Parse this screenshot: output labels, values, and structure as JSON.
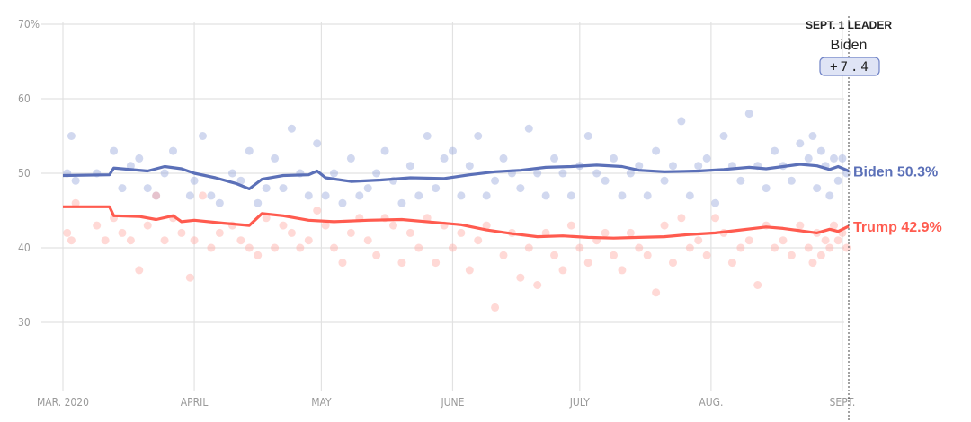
{
  "chart_data": {
    "type": "line",
    "title": "",
    "xlabel": "",
    "ylabel": "",
    "ylim": [
      20,
      70
    ],
    "x_unit": "days since Mar. 1, 2020",
    "xlim": [
      0,
      185
    ],
    "y_ticks": [
      {
        "value": 70,
        "label": "70%"
      },
      {
        "value": 60,
        "label": "60"
      },
      {
        "value": 50,
        "label": "50"
      },
      {
        "value": 40,
        "label": "40"
      },
      {
        "value": 30,
        "label": "30"
      }
    ],
    "x_ticks": [
      {
        "day": 0,
        "label": "MAR. 2020"
      },
      {
        "day": 31,
        "label": "APRIL"
      },
      {
        "day": 61,
        "label": "MAY"
      },
      {
        "day": 92,
        "label": "JUNE"
      },
      {
        "day": 122,
        "label": "JULY"
      },
      {
        "day": 153,
        "label": "AUG."
      },
      {
        "day": 184,
        "label": "SEPT."
      }
    ],
    "grid": true,
    "leader": {
      "heading": "SEPT. 1 LEADER",
      "name": "Biden",
      "margin": "+7.4",
      "day": 185.5
    },
    "series": [
      {
        "name": "Biden",
        "label": "Biden 50.3%",
        "color": "#5b70b8",
        "dot_color": "#9aa8dc",
        "trend": [
          [
            0,
            49.7
          ],
          [
            11,
            49.8
          ],
          [
            12,
            50.7
          ],
          [
            20,
            50.3
          ],
          [
            24,
            50.9
          ],
          [
            28,
            50.6
          ],
          [
            31,
            50.0
          ],
          [
            36,
            49.4
          ],
          [
            41,
            48.6
          ],
          [
            44,
            47.9
          ],
          [
            47,
            49.2
          ],
          [
            52,
            49.7
          ],
          [
            58,
            49.8
          ],
          [
            60,
            50.3
          ],
          [
            62,
            49.4
          ],
          [
            68,
            48.9
          ],
          [
            75,
            49.1
          ],
          [
            82,
            49.4
          ],
          [
            90,
            49.3
          ],
          [
            96,
            49.8
          ],
          [
            102,
            50.2
          ],
          [
            108,
            50.4
          ],
          [
            114,
            50.8
          ],
          [
            120,
            50.9
          ],
          [
            126,
            51.1
          ],
          [
            132,
            50.9
          ],
          [
            136,
            50.4
          ],
          [
            142,
            50.2
          ],
          [
            150,
            50.3
          ],
          [
            156,
            50.5
          ],
          [
            162,
            50.8
          ],
          [
            166,
            50.6
          ],
          [
            170,
            50.9
          ],
          [
            174,
            51.2
          ],
          [
            178,
            51.0
          ],
          [
            181,
            50.5
          ],
          [
            183,
            50.9
          ],
          [
            185.5,
            50.3
          ]
        ],
        "polls": [
          [
            1,
            50
          ],
          [
            2,
            55
          ],
          [
            3,
            49
          ],
          [
            8,
            50
          ],
          [
            12,
            53
          ],
          [
            14,
            48
          ],
          [
            16,
            51
          ],
          [
            18,
            52
          ],
          [
            20,
            48
          ],
          [
            22,
            47
          ],
          [
            24,
            50
          ],
          [
            26,
            53
          ],
          [
            30,
            47
          ],
          [
            31,
            49
          ],
          [
            33,
            55
          ],
          [
            35,
            47
          ],
          [
            37,
            46
          ],
          [
            40,
            50
          ],
          [
            42,
            49
          ],
          [
            44,
            53
          ],
          [
            46,
            46
          ],
          [
            48,
            48
          ],
          [
            50,
            52
          ],
          [
            52,
            48
          ],
          [
            54,
            56
          ],
          [
            56,
            50
          ],
          [
            58,
            47
          ],
          [
            60,
            54
          ],
          [
            62,
            47
          ],
          [
            64,
            50
          ],
          [
            66,
            46
          ],
          [
            68,
            52
          ],
          [
            70,
            47
          ],
          [
            72,
            48
          ],
          [
            74,
            50
          ],
          [
            76,
            53
          ],
          [
            78,
            49
          ],
          [
            80,
            46
          ],
          [
            82,
            51
          ],
          [
            84,
            47
          ],
          [
            86,
            55
          ],
          [
            88,
            48
          ],
          [
            90,
            52
          ],
          [
            92,
            53
          ],
          [
            94,
            47
          ],
          [
            96,
            51
          ],
          [
            98,
            55
          ],
          [
            100,
            47
          ],
          [
            102,
            49
          ],
          [
            104,
            52
          ],
          [
            106,
            50
          ],
          [
            108,
            48
          ],
          [
            110,
            56
          ],
          [
            112,
            50
          ],
          [
            114,
            47
          ],
          [
            116,
            52
          ],
          [
            118,
            50
          ],
          [
            120,
            47
          ],
          [
            122,
            51
          ],
          [
            124,
            55
          ],
          [
            126,
            50
          ],
          [
            128,
            49
          ],
          [
            130,
            52
          ],
          [
            132,
            47
          ],
          [
            134,
            50
          ],
          [
            136,
            51
          ],
          [
            138,
            47
          ],
          [
            140,
            53
          ],
          [
            142,
            49
          ],
          [
            144,
            51
          ],
          [
            146,
            57
          ],
          [
            148,
            47
          ],
          [
            150,
            51
          ],
          [
            152,
            52
          ],
          [
            154,
            46
          ],
          [
            156,
            55
          ],
          [
            158,
            51
          ],
          [
            160,
            49
          ],
          [
            162,
            58
          ],
          [
            164,
            51
          ],
          [
            166,
            48
          ],
          [
            168,
            53
          ],
          [
            170,
            51
          ],
          [
            172,
            49
          ],
          [
            174,
            54
          ],
          [
            176,
            52
          ],
          [
            177,
            55
          ],
          [
            178,
            48
          ],
          [
            179,
            53
          ],
          [
            180,
            51
          ],
          [
            181,
            47
          ],
          [
            182,
            52
          ],
          [
            183,
            49
          ],
          [
            184,
            52
          ],
          [
            185,
            50
          ]
        ]
      },
      {
        "name": "Trump",
        "label": "Trump 42.9%",
        "color": "#ff5b4f",
        "dot_color": "#ffaaa3",
        "trend": [
          [
            0,
            45.5
          ],
          [
            11,
            45.5
          ],
          [
            12,
            44.3
          ],
          [
            18,
            44.2
          ],
          [
            22,
            43.8
          ],
          [
            26,
            44.3
          ],
          [
            28,
            43.5
          ],
          [
            31,
            43.7
          ],
          [
            38,
            43.3
          ],
          [
            44,
            43.0
          ],
          [
            47,
            44.6
          ],
          [
            52,
            44.3
          ],
          [
            58,
            43.7
          ],
          [
            64,
            43.5
          ],
          [
            72,
            43.7
          ],
          [
            80,
            43.8
          ],
          [
            88,
            43.4
          ],
          [
            94,
            43.1
          ],
          [
            100,
            42.4
          ],
          [
            106,
            41.9
          ],
          [
            112,
            41.5
          ],
          [
            118,
            41.6
          ],
          [
            124,
            41.4
          ],
          [
            130,
            41.3
          ],
          [
            136,
            41.4
          ],
          [
            142,
            41.5
          ],
          [
            148,
            41.8
          ],
          [
            154,
            42.0
          ],
          [
            160,
            42.4
          ],
          [
            166,
            42.8
          ],
          [
            170,
            42.6
          ],
          [
            174,
            42.3
          ],
          [
            178,
            42.0
          ],
          [
            181,
            42.5
          ],
          [
            183,
            42.2
          ],
          [
            185.5,
            42.9
          ]
        ],
        "polls": [
          [
            1,
            42
          ],
          [
            2,
            41
          ],
          [
            3,
            46
          ],
          [
            8,
            43
          ],
          [
            10,
            41
          ],
          [
            12,
            44
          ],
          [
            14,
            42
          ],
          [
            16,
            41
          ],
          [
            18,
            37
          ],
          [
            20,
            43
          ],
          [
            22,
            47
          ],
          [
            24,
            41
          ],
          [
            26,
            44
          ],
          [
            28,
            42
          ],
          [
            30,
            36
          ],
          [
            31,
            41
          ],
          [
            33,
            47
          ],
          [
            35,
            40
          ],
          [
            37,
            42
          ],
          [
            40,
            43
          ],
          [
            42,
            41
          ],
          [
            44,
            40
          ],
          [
            46,
            39
          ],
          [
            48,
            44
          ],
          [
            50,
            40
          ],
          [
            52,
            43
          ],
          [
            54,
            42
          ],
          [
            56,
            40
          ],
          [
            58,
            41
          ],
          [
            60,
            45
          ],
          [
            62,
            43
          ],
          [
            64,
            40
          ],
          [
            66,
            38
          ],
          [
            68,
            42
          ],
          [
            70,
            44
          ],
          [
            72,
            41
          ],
          [
            74,
            39
          ],
          [
            76,
            44
          ],
          [
            78,
            43
          ],
          [
            80,
            38
          ],
          [
            82,
            42
          ],
          [
            84,
            40
          ],
          [
            86,
            44
          ],
          [
            88,
            38
          ],
          [
            90,
            43
          ],
          [
            92,
            40
          ],
          [
            94,
            42
          ],
          [
            96,
            37
          ],
          [
            98,
            41
          ],
          [
            100,
            43
          ],
          [
            102,
            32
          ],
          [
            104,
            39
          ],
          [
            106,
            42
          ],
          [
            108,
            36
          ],
          [
            110,
            40
          ],
          [
            112,
            35
          ],
          [
            114,
            42
          ],
          [
            116,
            39
          ],
          [
            118,
            37
          ],
          [
            120,
            43
          ],
          [
            122,
            40
          ],
          [
            124,
            38
          ],
          [
            126,
            41
          ],
          [
            128,
            42
          ],
          [
            130,
            39
          ],
          [
            132,
            37
          ],
          [
            134,
            42
          ],
          [
            136,
            40
          ],
          [
            138,
            39
          ],
          [
            140,
            34
          ],
          [
            142,
            43
          ],
          [
            144,
            38
          ],
          [
            146,
            44
          ],
          [
            148,
            40
          ],
          [
            150,
            41
          ],
          [
            152,
            39
          ],
          [
            154,
            44
          ],
          [
            156,
            42
          ],
          [
            158,
            38
          ],
          [
            160,
            40
          ],
          [
            162,
            41
          ],
          [
            164,
            35
          ],
          [
            166,
            43
          ],
          [
            168,
            40
          ],
          [
            170,
            41
          ],
          [
            172,
            39
          ],
          [
            174,
            43
          ],
          [
            176,
            40
          ],
          [
            177,
            38
          ],
          [
            178,
            42
          ],
          [
            179,
            39
          ],
          [
            180,
            41
          ],
          [
            181,
            40
          ],
          [
            182,
            43
          ],
          [
            183,
            41
          ],
          [
            184,
            42
          ],
          [
            185,
            40
          ]
        ]
      }
    ]
  }
}
